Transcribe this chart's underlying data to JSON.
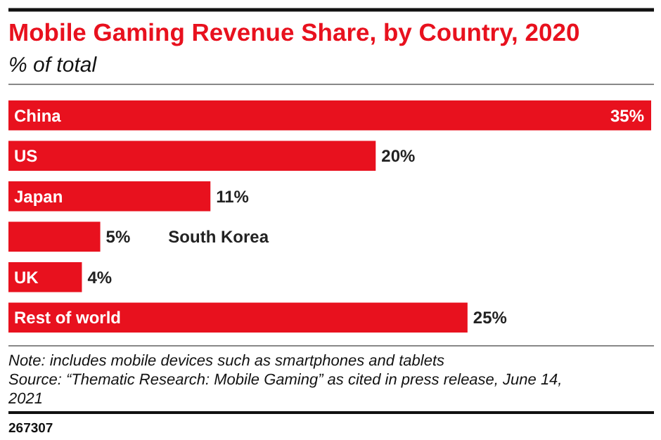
{
  "chart_data": {
    "type": "bar",
    "orientation": "horizontal",
    "title": "Mobile Gaming Revenue Share, by Country, 2020",
    "subtitle": "% of total",
    "categories": [
      "China",
      "US",
      "Japan",
      "South Korea",
      "UK",
      "Rest of world"
    ],
    "values": [
      35,
      20,
      11,
      5,
      4,
      25
    ],
    "value_labels": [
      "35%",
      "20%",
      "11%",
      "5%",
      "4%",
      "25%"
    ],
    "color": "#e8111e",
    "xlim": [
      0,
      35
    ],
    "annotations": [
      "Note: includes mobile devices such as smartphones and tablets",
      "Source: “Thematic Research: Mobile Gaming” as cited in press release, June 14, 2021",
      "267307"
    ]
  }
}
